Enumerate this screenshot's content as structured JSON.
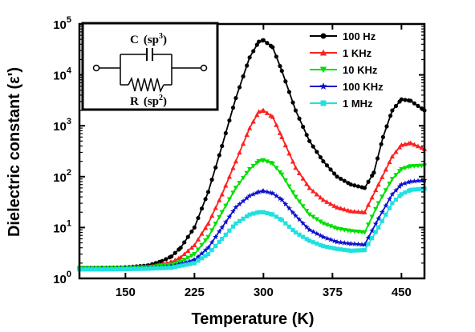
{
  "chart_data": {
    "type": "line",
    "xlabel": "Temperature (K)",
    "ylabel": "Dielectric constant (ε')",
    "x_ticks": [
      150,
      225,
      300,
      375,
      450
    ],
    "y_ticks": [
      {
        "value": 1,
        "base": "10",
        "exp": "0"
      },
      {
        "value": 10,
        "base": "10",
        "exp": "1"
      },
      {
        "value": 100,
        "base": "10",
        "exp": "2"
      },
      {
        "value": 1000,
        "base": "10",
        "exp": "3"
      },
      {
        "value": 10000,
        "base": "10",
        "exp": "4"
      },
      {
        "value": 100000,
        "base": "10",
        "exp": "5"
      }
    ],
    "xlim": [
      100,
      475
    ],
    "ylim": [
      1,
      100000
    ],
    "yscale": "log",
    "legend_position": "top-right",
    "series": [
      {
        "name": "100 Hz",
        "color": "#000000",
        "marker": "circle",
        "x": [
          100,
          125,
          150,
          175,
          190,
          200,
          210,
          225,
          240,
          255,
          270,
          285,
          295,
          300,
          310,
          320,
          335,
          350,
          365,
          380,
          395,
          410,
          420,
          430,
          440,
          450,
          460,
          475
        ],
        "y": [
          1.6,
          1.6,
          1.65,
          1.8,
          2.2,
          2.7,
          4,
          10,
          50,
          400,
          3500,
          22000,
          45000,
          48000,
          35000,
          12000,
          2000,
          500,
          200,
          100,
          70,
          60,
          120,
          600,
          2000,
          3300,
          3100,
          2000
        ]
      },
      {
        "name": "1 KHz",
        "color": "#ff2020",
        "marker": "triangle-up",
        "x": [
          100,
          125,
          150,
          175,
          200,
          210,
          225,
          240,
          255,
          270,
          285,
          295,
          300,
          310,
          320,
          335,
          350,
          365,
          380,
          395,
          410,
          425,
          440,
          450,
          460,
          475
        ],
        "y": [
          1.6,
          1.6,
          1.65,
          1.7,
          2.1,
          2.6,
          4.5,
          12,
          45,
          200,
          900,
          1900,
          2000,
          1500,
          600,
          150,
          60,
          35,
          25,
          21,
          20,
          70,
          250,
          420,
          460,
          350
        ]
      },
      {
        "name": "10 KHz",
        "color": "#00e000",
        "marker": "triangle-down",
        "x": [
          100,
          125,
          150,
          175,
          200,
          210,
          225,
          240,
          255,
          270,
          285,
          295,
          300,
          310,
          320,
          335,
          350,
          365,
          380,
          395,
          410,
          425,
          440,
          450,
          460,
          475
        ],
        "y": [
          1.6,
          1.6,
          1.62,
          1.65,
          1.85,
          2.1,
          3,
          6.5,
          20,
          60,
          140,
          200,
          210,
          180,
          110,
          40,
          18,
          12,
          9.5,
          8.5,
          8,
          30,
          90,
          140,
          160,
          165
        ]
      },
      {
        "name": "100 KHz",
        "color": "#1010d0",
        "marker": "star",
        "x": [
          100,
          125,
          150,
          175,
          200,
          225,
          240,
          255,
          270,
          285,
          295,
          300,
          310,
          320,
          335,
          350,
          365,
          380,
          395,
          410,
          425,
          440,
          450,
          460,
          475
        ],
        "y": [
          1.55,
          1.55,
          1.58,
          1.6,
          1.7,
          2.3,
          4,
          10,
          25,
          42,
          50,
          52,
          47,
          35,
          17,
          9,
          6.5,
          5.2,
          4.8,
          4.6,
          15,
          45,
          70,
          80,
          85
        ]
      },
      {
        "name": "1 MHz",
        "color": "#20e0e0",
        "marker": "square",
        "x": [
          100,
          125,
          150,
          175,
          200,
          225,
          240,
          255,
          270,
          285,
          295,
          300,
          310,
          320,
          335,
          350,
          365,
          380,
          395,
          410,
          425,
          440,
          450,
          460,
          475
        ],
        "y": [
          1.5,
          1.5,
          1.52,
          1.55,
          1.62,
          2,
          3,
          6,
          12,
          18,
          20,
          20,
          18,
          14,
          8,
          5.5,
          4.3,
          3.8,
          3.5,
          3.6,
          10,
          30,
          45,
          55,
          58
        ]
      }
    ]
  },
  "inset": {
    "top_label": "C",
    "top_paren": "(sp",
    "top_sup": "3",
    "bottom_label": "R",
    "bottom_paren": "(sp",
    "bottom_sup": "2",
    "close_paren": ")"
  }
}
